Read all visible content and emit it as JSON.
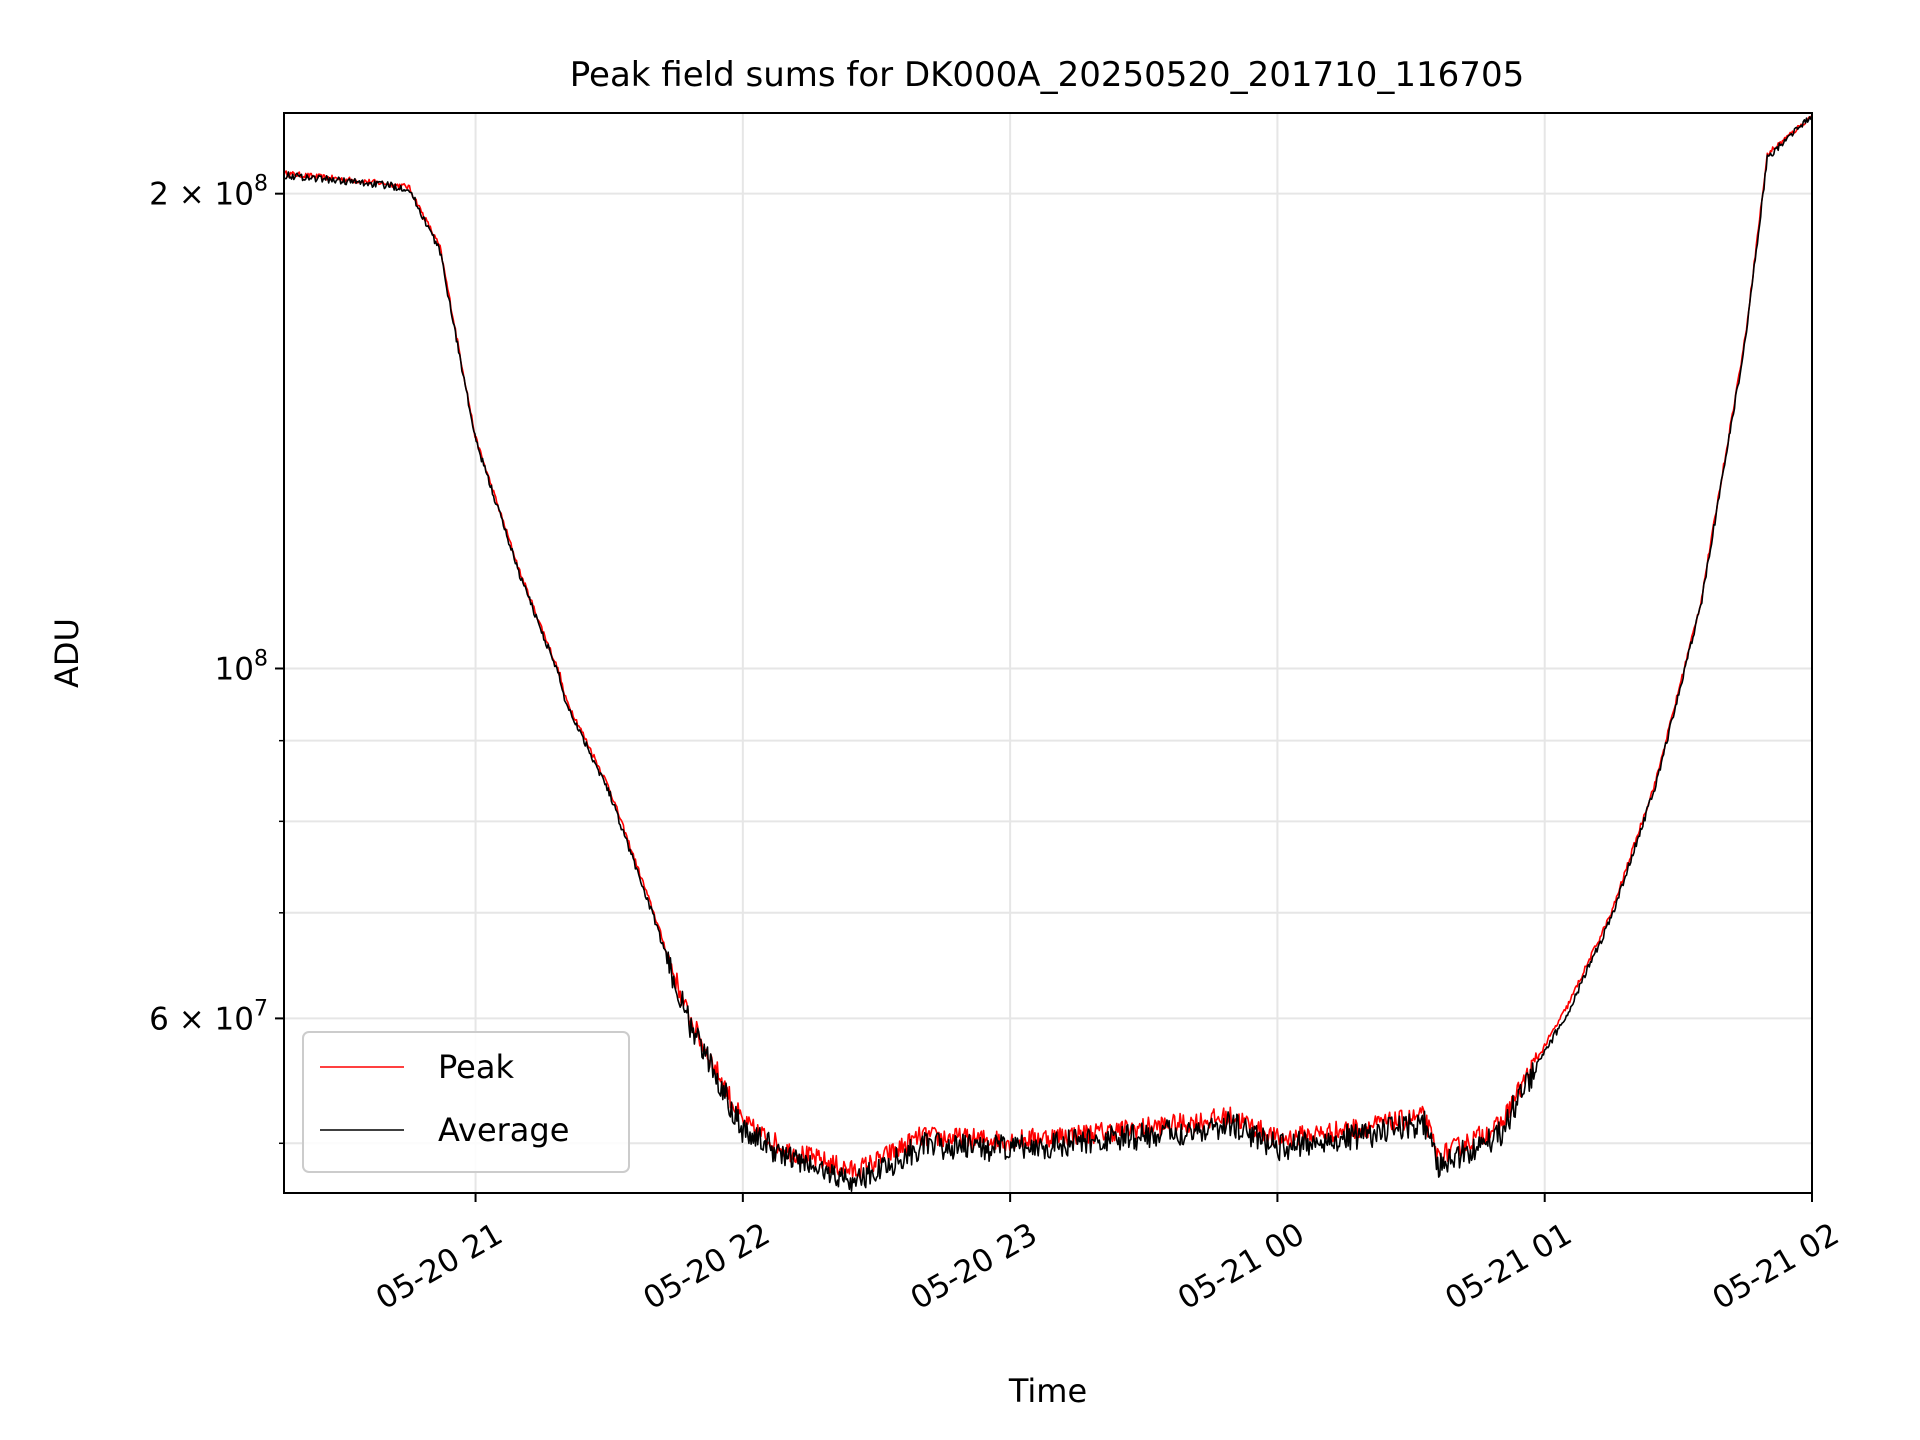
{
  "chart_data": {
    "type": "line",
    "title": "Peak field sums for DK000A_20250520_201710_116705",
    "xlabel": "Time",
    "ylabel": "ADU",
    "yscale": "log",
    "x_range": [
      "2025-05-20 20:17",
      "2025-05-21 02:00"
    ],
    "ylim": [
      46500000,
      225000000
    ],
    "x_ticks": [
      {
        "x": "2025-05-20 21:00",
        "label": "05-20 21"
      },
      {
        "x": "2025-05-20 22:00",
        "label": "05-20 22"
      },
      {
        "x": "2025-05-20 23:00",
        "label": "05-20 23"
      },
      {
        "x": "2025-05-21 00:00",
        "label": "05-21 00"
      },
      {
        "x": "2025-05-21 01:00",
        "label": "05-21 01"
      },
      {
        "x": "2025-05-21 02:00",
        "label": "05-21 02"
      }
    ],
    "y_major_ticks": [
      {
        "value": 60000000,
        "base": "6 × 10",
        "exp": "7"
      },
      {
        "value": 100000000,
        "base": "10",
        "exp": "8"
      },
      {
        "value": 200000000,
        "base": "2 × 10",
        "exp": "8"
      }
    ],
    "y_minor_ticks": [
      50000000,
      70000000,
      80000000,
      90000000
    ],
    "grid": true,
    "legend_position": "lower-left",
    "series": [
      {
        "name": "Peak",
        "color": "#ff0000",
        "noise": 0.007,
        "x": [
          "2025-05-20 20:17",
          "2025-05-20 20:40",
          "2025-05-20 20:45",
          "2025-05-20 20:52",
          "2025-05-20 21:00",
          "2025-05-20 21:10",
          "2025-05-20 21:19",
          "2025-05-20 21:20",
          "2025-05-20 21:30",
          "2025-05-20 21:40",
          "2025-05-20 21:47",
          "2025-05-20 21:50",
          "2025-05-20 21:55",
          "2025-05-20 22:00",
          "2025-05-20 22:10",
          "2025-05-20 22:20",
          "2025-05-20 22:25",
          "2025-05-20 22:30",
          "2025-05-20 22:40",
          "2025-05-20 23:00",
          "2025-05-20 23:20",
          "2025-05-20 23:40",
          "2025-05-20 23:50",
          "2025-05-21 00:00",
          "2025-05-21 00:20",
          "2025-05-21 00:33",
          "2025-05-21 00:36",
          "2025-05-21 00:50",
          "2025-05-21 00:55",
          "2025-05-21 01:05",
          "2025-05-21 01:15",
          "2025-05-21 01:25",
          "2025-05-21 01:35",
          "2025-05-21 01:45",
          "2025-05-21 01:50",
          "2025-05-21 02:00"
        ],
        "y": [
          206000000,
          203000000,
          202000000,
          185000000,
          140000000,
          115000000,
          99000000,
          96000000,
          84000000,
          70000000,
          61000000,
          58500000,
          55000000,
          51500000,
          49500000,
          48500000,
          48000000,
          48700000,
          50500000,
          50200000,
          50800000,
          51500000,
          52000000,
          50300000,
          51200000,
          52000000,
          49000000,
          51300000,
          54500000,
          61000000,
          70000000,
          85000000,
          110000000,
          162000000,
          212000000,
          224000000
        ]
      },
      {
        "name": "Average",
        "color": "#000000",
        "noise": 0.009,
        "x": [
          "2025-05-20 20:17",
          "2025-05-20 20:40",
          "2025-05-20 20:45",
          "2025-05-20 20:52",
          "2025-05-20 21:00",
          "2025-05-20 21:10",
          "2025-05-20 21:19",
          "2025-05-20 21:20",
          "2025-05-20 21:30",
          "2025-05-20 21:40",
          "2025-05-20 21:47",
          "2025-05-20 21:50",
          "2025-05-20 21:55",
          "2025-05-20 22:00",
          "2025-05-20 22:10",
          "2025-05-20 22:20",
          "2025-05-20 22:25",
          "2025-05-20 22:30",
          "2025-05-20 22:40",
          "2025-05-20 23:00",
          "2025-05-20 23:20",
          "2025-05-20 23:40",
          "2025-05-20 23:50",
          "2025-05-21 00:00",
          "2025-05-21 00:20",
          "2025-05-21 00:33",
          "2025-05-21 00:36",
          "2025-05-21 00:50",
          "2025-05-21 00:55",
          "2025-05-21 01:05",
          "2025-05-21 01:15",
          "2025-05-21 01:25",
          "2025-05-21 01:35",
          "2025-05-21 01:45",
          "2025-05-21 01:50",
          "2025-05-21 02:00"
        ],
        "y": [
          205500000,
          202500000,
          201500000,
          184000000,
          139500000,
          114500000,
          98500000,
          95500000,
          83500000,
          69500000,
          60500000,
          58000000,
          54500000,
          51000000,
          49000000,
          47800000,
          47300000,
          48000000,
          49800000,
          49600000,
          50200000,
          50900000,
          51400000,
          49700000,
          50600000,
          51400000,
          48300000,
          50700000,
          54000000,
          60400000,
          69500000,
          84500000,
          109500000,
          161000000,
          211000000,
          224000000
        ]
      }
    ]
  }
}
